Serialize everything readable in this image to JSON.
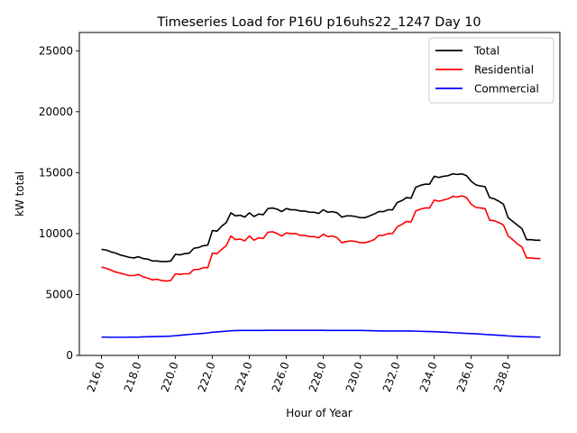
{
  "chart_data": {
    "type": "line",
    "title": "Timeseries Load for P16U p16uhs22_1247  Day 10",
    "xlabel": "Hour of Year",
    "ylabel": "kW total",
    "xlim": [
      214.8,
      240.8
    ],
    "ylim": [
      0,
      26500
    ],
    "xticks": [
      216,
      218,
      220,
      222,
      224,
      226,
      228,
      230,
      232,
      234,
      236,
      238
    ],
    "xtick_labels": [
      "216.0",
      "218.0",
      "220.0",
      "222.0",
      "224.0",
      "226.0",
      "228.0",
      "230.0",
      "232.0",
      "234.0",
      "236.0",
      "238.0"
    ],
    "yticks": [
      0,
      5000,
      10000,
      15000,
      20000,
      25000
    ],
    "ytick_labels": [
      "0",
      "5000",
      "10000",
      "15000",
      "20000",
      "25000"
    ],
    "legend_position": "top-right",
    "x": [
      216.0,
      216.25,
      216.5,
      216.75,
      217.0,
      217.25,
      217.5,
      217.75,
      218.0,
      218.25,
      218.5,
      218.75,
      219.0,
      219.25,
      219.5,
      219.75,
      220.0,
      220.25,
      220.5,
      220.75,
      221.0,
      221.25,
      221.5,
      221.75,
      222.0,
      222.25,
      222.5,
      222.75,
      223.0,
      223.25,
      223.5,
      223.75,
      224.0,
      224.25,
      224.5,
      224.75,
      225.0,
      225.25,
      225.5,
      225.75,
      226.0,
      226.25,
      226.5,
      226.75,
      227.0,
      227.25,
      227.5,
      227.75,
      228.0,
      228.25,
      228.5,
      228.75,
      229.0,
      229.25,
      229.5,
      229.75,
      230.0,
      230.25,
      230.5,
      230.75,
      231.0,
      231.25,
      231.5,
      231.75,
      232.0,
      232.25,
      232.5,
      232.75,
      233.0,
      233.25,
      233.5,
      233.75,
      234.0,
      234.25,
      234.5,
      234.75,
      235.0,
      235.25,
      235.5,
      235.75,
      236.0,
      236.25,
      236.5,
      236.75,
      237.0,
      237.25,
      237.5,
      237.75,
      238.0,
      238.25,
      238.5,
      238.75,
      239.0,
      239.25,
      239.5,
      239.75
    ],
    "series": [
      {
        "name": "Total",
        "color": "#000000",
        "values": [
          8700,
          8650,
          8500,
          8400,
          8250,
          8150,
          8050,
          8000,
          8100,
          7950,
          7900,
          7750,
          7750,
          7700,
          7700,
          7750,
          8300,
          8250,
          8350,
          8400,
          8800,
          8850,
          9000,
          9050,
          10250,
          10200,
          10600,
          10900,
          11700,
          11450,
          11500,
          11350,
          11700,
          11400,
          11600,
          11550,
          12050,
          12100,
          12000,
          11800,
          12050,
          11950,
          11950,
          11850,
          11850,
          11750,
          11750,
          11650,
          11950,
          11750,
          11800,
          11700,
          11350,
          11450,
          11450,
          11400,
          11300,
          11300,
          11450,
          11600,
          11800,
          11800,
          11950,
          11950,
          12550,
          12700,
          12950,
          12900,
          13800,
          13950,
          14050,
          14050,
          14700,
          14600,
          14700,
          14750,
          14900,
          14850,
          14900,
          14750,
          14300,
          14000,
          13900,
          13850,
          12950,
          12850,
          12650,
          12400,
          11300,
          11000,
          10700,
          10400,
          9500,
          9500,
          9450,
          9450
        ]
      },
      {
        "name": "Residential",
        "color": "#ff0000",
        "values": [
          7250,
          7150,
          7000,
          6850,
          6750,
          6650,
          6550,
          6550,
          6650,
          6450,
          6350,
          6200,
          6250,
          6150,
          6100,
          6150,
          6700,
          6650,
          6700,
          6700,
          7050,
          7050,
          7200,
          7200,
          8400,
          8350,
          8700,
          9000,
          9800,
          9500,
          9550,
          9400,
          9800,
          9450,
          9650,
          9600,
          10100,
          10150,
          10000,
          9800,
          10050,
          10000,
          10000,
          9850,
          9850,
          9750,
          9750,
          9650,
          9950,
          9750,
          9800,
          9650,
          9250,
          9350,
          9400,
          9350,
          9250,
          9250,
          9350,
          9500,
          9850,
          9850,
          10000,
          10000,
          10550,
          10750,
          11000,
          10950,
          11850,
          12000,
          12100,
          12100,
          12750,
          12650,
          12750,
          12850,
          13050,
          13000,
          13100,
          12950,
          12400,
          12150,
          12100,
          12050,
          11100,
          11050,
          10900,
          10700,
          9800,
          9500,
          9150,
          8900,
          8000,
          8000,
          7950,
          7950
        ]
      },
      {
        "name": "Commercial",
        "color": "#0000ff",
        "values": [
          1500,
          1500,
          1490,
          1490,
          1490,
          1490,
          1500,
          1500,
          1500,
          1520,
          1530,
          1540,
          1550,
          1560,
          1570,
          1590,
          1620,
          1650,
          1690,
          1720,
          1750,
          1780,
          1810,
          1850,
          1900,
          1930,
          1960,
          1990,
          2020,
          2040,
          2050,
          2050,
          2050,
          2050,
          2050,
          2050,
          2060,
          2060,
          2060,
          2060,
          2060,
          2060,
          2060,
          2060,
          2060,
          2060,
          2060,
          2060,
          2060,
          2050,
          2050,
          2050,
          2050,
          2050,
          2050,
          2050,
          2050,
          2040,
          2030,
          2020,
          2010,
          2000,
          2000,
          2000,
          2000,
          2000,
          2000,
          2000,
          1990,
          1980,
          1970,
          1960,
          1950,
          1930,
          1910,
          1890,
          1870,
          1850,
          1830,
          1810,
          1790,
          1770,
          1750,
          1720,
          1700,
          1680,
          1650,
          1630,
          1600,
          1580,
          1560,
          1540,
          1530,
          1520,
          1510,
          1500
        ]
      }
    ]
  }
}
